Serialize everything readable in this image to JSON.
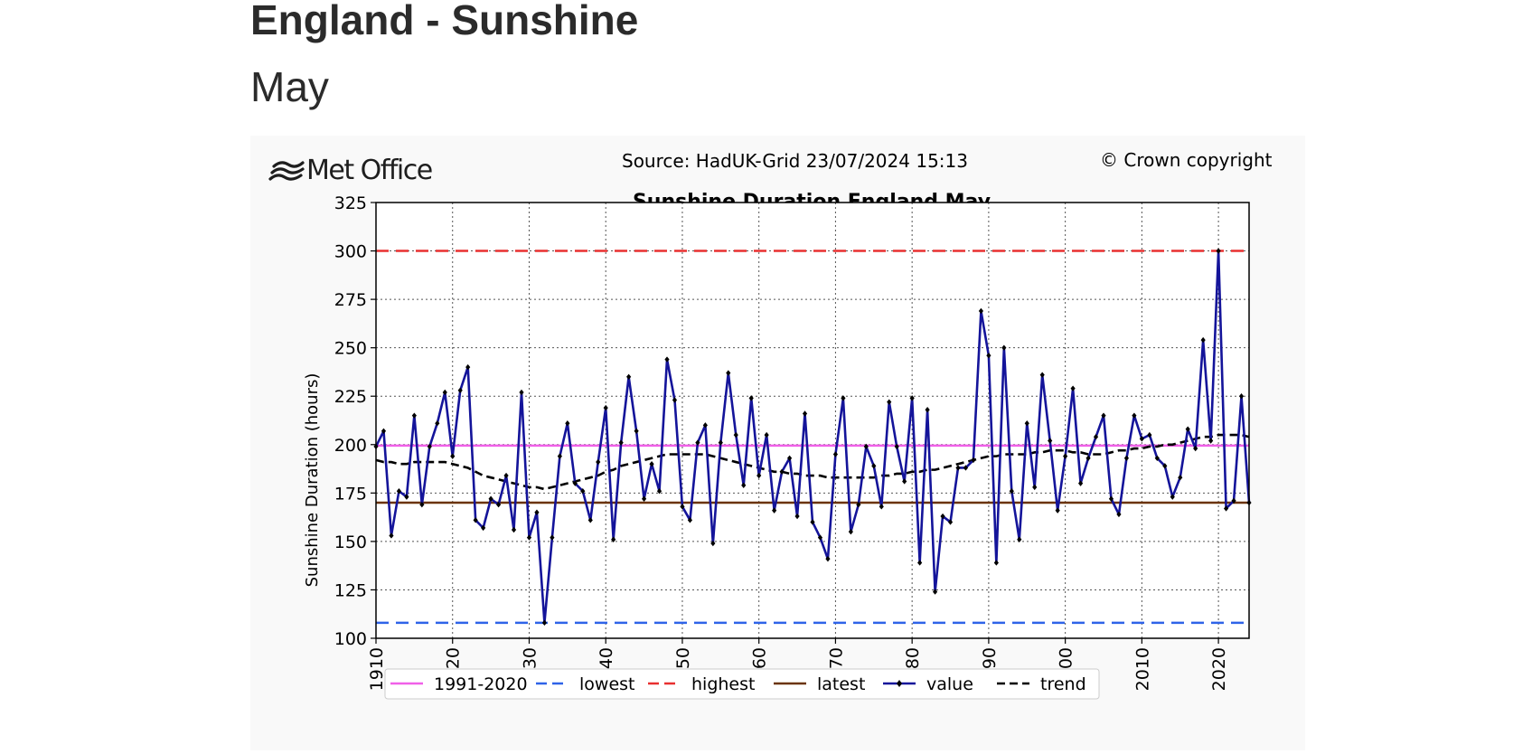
{
  "page": {
    "title": "England - Sunshine",
    "subtitle": "May"
  },
  "header": {
    "logo_text": "Met Office",
    "logo_icon": "wave-lines-icon",
    "source": "Source: HadUK-Grid 23/07/2024 15:13",
    "copyright": "© Crown copyright"
  },
  "chart_data": {
    "type": "line",
    "title": "Sunshine Duration England May",
    "xlabel": "",
    "ylabel": "Sunshine Duration (hours)",
    "xlim": [
      1910,
      2024
    ],
    "ylim": [
      100,
      325
    ],
    "x_ticks": [
      1910,
      1920,
      1930,
      1940,
      1950,
      1960,
      1970,
      1980,
      1990,
      2000,
      2010,
      2020
    ],
    "y_ticks": [
      100,
      125,
      150,
      175,
      200,
      225,
      250,
      275,
      300,
      325
    ],
    "grid": true,
    "legend_position": "bottom",
    "x": [
      1910,
      1911,
      1912,
      1913,
      1914,
      1915,
      1916,
      1917,
      1918,
      1919,
      1920,
      1921,
      1922,
      1923,
      1924,
      1925,
      1926,
      1927,
      1928,
      1929,
      1930,
      1931,
      1932,
      1933,
      1934,
      1935,
      1936,
      1937,
      1938,
      1939,
      1940,
      1941,
      1942,
      1943,
      1944,
      1945,
      1946,
      1947,
      1948,
      1949,
      1950,
      1951,
      1952,
      1953,
      1954,
      1955,
      1956,
      1957,
      1958,
      1959,
      1960,
      1961,
      1962,
      1963,
      1964,
      1965,
      1966,
      1967,
      1968,
      1969,
      1970,
      1971,
      1972,
      1973,
      1974,
      1975,
      1976,
      1977,
      1978,
      1979,
      1980,
      1981,
      1982,
      1983,
      1984,
      1985,
      1986,
      1987,
      1988,
      1989,
      1990,
      1991,
      1992,
      1993,
      1994,
      1995,
      1996,
      1997,
      1998,
      1999,
      2000,
      2001,
      2002,
      2003,
      2004,
      2005,
      2006,
      2007,
      2008,
      2009,
      2010,
      2011,
      2012,
      2013,
      2014,
      2015,
      2016,
      2017,
      2018,
      2019,
      2020,
      2021,
      2022,
      2023,
      2024
    ],
    "series": [
      {
        "name": "value",
        "color": "#14149a",
        "values": [
          199,
          207,
          153,
          176,
          173,
          215,
          169,
          199,
          211,
          227,
          194,
          228,
          240,
          161,
          157,
          172,
          169,
          184,
          156,
          227,
          152,
          165,
          108,
          152,
          194,
          211,
          180,
          176,
          161,
          191,
          219,
          151,
          201,
          235,
          207,
          172,
          190,
          176,
          244,
          223,
          168,
          161,
          201,
          210,
          149,
          201,
          237,
          205,
          179,
          224,
          184,
          205,
          166,
          186,
          193,
          163,
          216,
          160,
          152,
          141,
          195,
          224,
          155,
          169,
          199,
          189,
          168,
          222,
          199,
          181,
          224,
          139,
          218,
          124,
          163,
          160,
          188,
          188,
          192,
          269,
          246,
          139,
          250,
          176,
          151,
          211,
          178,
          236,
          202,
          166,
          194,
          229,
          180,
          193,
          204,
          215,
          172,
          164,
          193,
          215,
          203,
          205,
          193,
          189,
          173,
          183,
          208,
          198,
          254,
          202,
          300,
          167,
          171,
          225,
          170
        ]
      },
      {
        "name": "trend",
        "color": "#000000",
        "values": [
          192,
          191,
          191,
          190,
          190,
          191,
          191,
          191,
          191,
          191,
          190,
          189,
          188,
          186,
          184,
          183,
          182,
          181,
          180,
          179,
          178,
          178,
          177,
          178,
          179,
          180,
          181,
          182,
          183,
          184,
          186,
          187,
          189,
          190,
          191,
          192,
          193,
          194,
          195,
          195,
          195,
          195,
          195,
          195,
          194,
          193,
          192,
          191,
          190,
          189,
          188,
          187,
          186,
          186,
          185,
          185,
          184,
          184,
          184,
          183,
          183,
          183,
          183,
          183,
          183,
          183,
          184,
          184,
          185,
          185,
          186,
          186,
          187,
          187,
          188,
          189,
          190,
          191,
          192,
          193,
          194,
          194,
          195,
          195,
          195,
          195,
          196,
          196,
          197,
          197,
          197,
          196,
          196,
          195,
          195,
          195,
          196,
          197,
          197,
          198,
          198,
          199,
          199,
          200,
          200,
          201,
          202,
          203,
          204,
          204,
          205,
          205,
          205,
          205,
          204
        ]
      }
    ],
    "reference_lines": [
      {
        "name": "1991-2020",
        "value": 199.5,
        "color": "#f060e8"
      },
      {
        "name": "lowest",
        "value": 108,
        "color": "#2f63e8"
      },
      {
        "name": "highest",
        "value": 300,
        "color": "#e83030"
      },
      {
        "name": "latest",
        "value": 170,
        "color": "#6b3408"
      }
    ],
    "legend": [
      "1991-2020",
      "lowest",
      "highest",
      "latest",
      "value",
      "trend"
    ]
  }
}
